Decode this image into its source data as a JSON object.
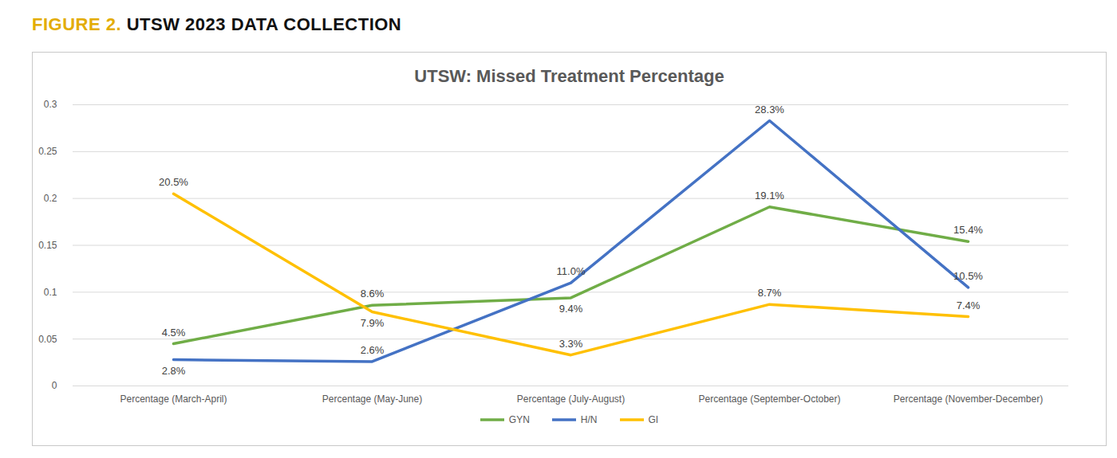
{
  "figure": {
    "label": "FIGURE 2.",
    "title": "UTSW 2023 DATA COLLECTION"
  },
  "chart_data": {
    "type": "line",
    "title": "UTSW: Missed Treatment Percentage",
    "categories": [
      "Percentage (March-April)",
      "Percentage (May-June)",
      "Percentage (July-August)",
      "Percentage (September-October)",
      "Percentage (November-December)"
    ],
    "series": [
      {
        "name": "GYN",
        "color": "#70ad47",
        "values": [
          0.045,
          0.086,
          0.094,
          0.191,
          0.154
        ],
        "value_labels": [
          "4.5%",
          "8.6%",
          "9.4%",
          "19.1%",
          "15.4%"
        ]
      },
      {
        "name": "H/N",
        "color": "#4472c4",
        "values": [
          0.028,
          0.026,
          0.11,
          0.283,
          0.105
        ],
        "value_labels": [
          "2.8%",
          "2.6%",
          "11.0%",
          "28.3%",
          "10.5%"
        ]
      },
      {
        "name": "GI",
        "color": "#ffc000",
        "values": [
          0.205,
          0.079,
          0.033,
          0.087,
          0.074
        ],
        "value_labels": [
          "20.5%",
          "7.9%",
          "3.3%",
          "8.7%",
          "7.4%"
        ]
      }
    ],
    "ylim": [
      0,
      0.3
    ],
    "yticks": [
      0,
      0.05,
      0.1,
      0.15,
      0.2,
      0.25,
      0.3
    ],
    "grid": true,
    "legend": "bottom",
    "data_labels": true
  }
}
